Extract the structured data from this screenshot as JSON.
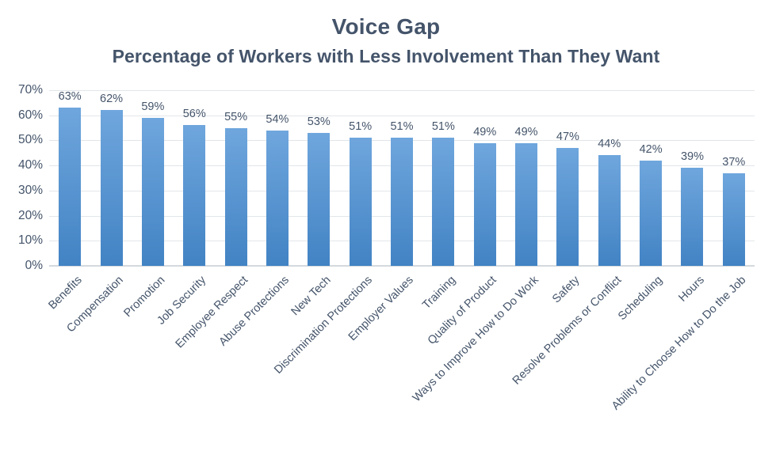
{
  "chart_data": {
    "type": "bar",
    "title": "Voice Gap",
    "subtitle": "Percentage of Workers with Less Involvement Than They Want",
    "categories": [
      "Benefits",
      "Compensation",
      "Promotion",
      "Job Security",
      "Employee Respect",
      "Abuse Protections",
      "New Tech",
      "Discrimination Protections",
      "Employer Values",
      "Training",
      "Quality of Product",
      "Ways to Improve How to Do Work",
      "Safety",
      "Resolve Problems or Conflict",
      "Scheduling",
      "Hours",
      "Ability to Choose How to Do the Job"
    ],
    "values": [
      63,
      62,
      59,
      56,
      55,
      54,
      53,
      51,
      51,
      51,
      49,
      49,
      47,
      44,
      42,
      39,
      37
    ],
    "data_labels": [
      "63%",
      "62%",
      "59%",
      "56%",
      "55%",
      "54%",
      "53%",
      "51%",
      "51%",
      "51%",
      "49%",
      "49%",
      "47%",
      "44%",
      "42%",
      "39%",
      "37%"
    ],
    "xlabel": "",
    "ylabel": "",
    "ylim": [
      0,
      70
    ],
    "y_ticks": [
      "0%",
      "10%",
      "20%",
      "30%",
      "40%",
      "50%",
      "60%",
      "70%"
    ],
    "grid": true,
    "legend_position": "none",
    "x_label_rotation_deg": 45,
    "colors": {
      "text": "#44546A",
      "bar_gradient_top": "#6FA6DD",
      "bar_gradient_bottom": "#4283C4",
      "gridline": "#E2E6EA",
      "axis_line": "#D4D9DE",
      "background": "#FFFFFF"
    }
  }
}
